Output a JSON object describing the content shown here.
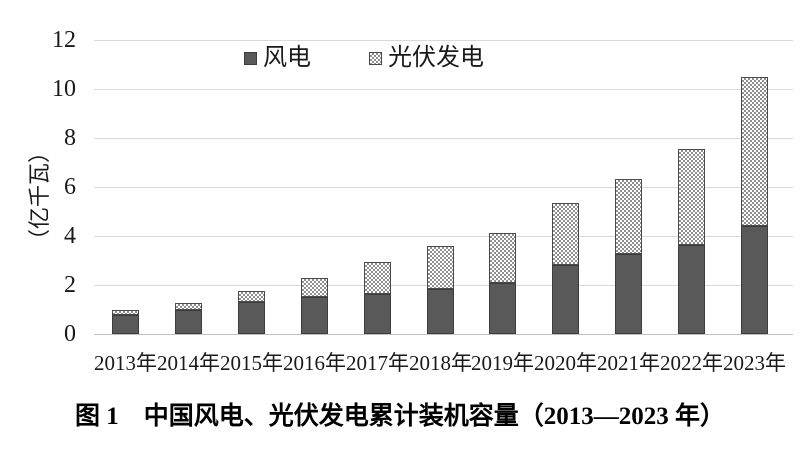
{
  "figure": {
    "caption": "图 1　中国风电、光伏发电累计装机容量（2013—2023 年）",
    "y_axis_title": "（亿千瓦）"
  },
  "colors": {
    "wind_fill": "#595959",
    "solar_pattern_dot": "#8f8f8f",
    "solar_pattern_bg": "#ffffff",
    "bar_border": "#3d3d3d",
    "gridline": "#d9d9d9",
    "text": "#1a1a1a"
  },
  "chart_data": {
    "type": "bar",
    "stacked": true,
    "title": "图 1　中国风电、光伏发电累计装机容量（2013—2023 年）",
    "xlabel": "",
    "ylabel": "（亿千瓦）",
    "ylim": [
      0,
      12
    ],
    "yticks": [
      0,
      2,
      4,
      6,
      8,
      10,
      12
    ],
    "grid": true,
    "legend_position": "top-center",
    "categories": [
      "2013年",
      "2014年",
      "2015年",
      "2016年",
      "2017年",
      "2018年",
      "2019年",
      "2020年",
      "2021年",
      "2022年",
      "2023年"
    ],
    "series": [
      {
        "name": "风电",
        "pattern": "solid",
        "color": "#595959",
        "values": [
          0.77,
          0.96,
          1.29,
          1.49,
          1.64,
          1.84,
          2.1,
          2.82,
          3.28,
          3.65,
          4.41
        ]
      },
      {
        "name": "光伏发电",
        "pattern": "checker",
        "color": "#8f8f8f",
        "values": [
          0.19,
          0.28,
          0.43,
          0.77,
          1.3,
          1.75,
          2.05,
          2.53,
          3.07,
          3.93,
          6.09
        ]
      }
    ],
    "totals": [
      0.96,
      1.24,
      1.72,
      2.26,
      2.94,
      3.59,
      4.15,
      5.35,
      6.35,
      7.58,
      10.5
    ]
  }
}
